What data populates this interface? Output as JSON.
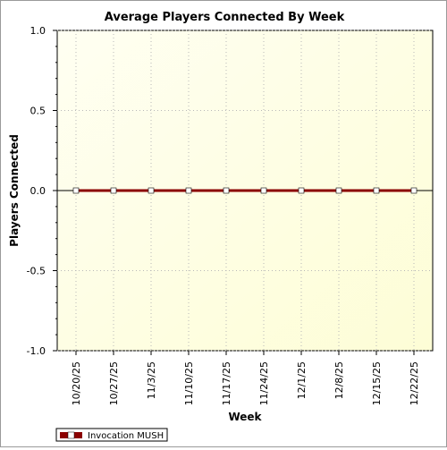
{
  "chart_data": {
    "type": "line",
    "title": "Average Players Connected By Week",
    "xlabel": "Week",
    "ylabel": "Players Connected",
    "categories": [
      "10/20/25",
      "10/27/25",
      "11/3/25",
      "11/10/25",
      "11/17/25",
      "11/24/25",
      "12/1/25",
      "12/8/25",
      "12/15/25",
      "12/22/25"
    ],
    "series": [
      {
        "name": "Invocation MUSH",
        "values": [
          0,
          0,
          0,
          0,
          0,
          0,
          0,
          0,
          0,
          0
        ],
        "color": "#8b0000"
      }
    ],
    "ylim": [
      -1.0,
      1.0
    ],
    "yticks": [
      "1.0",
      "0.5",
      "0.0",
      "-0.5",
      "-1.0"
    ],
    "grid": true,
    "legend": "bottom-left",
    "plot_background": "#fffff0",
    "marker_fill": "#ffffff"
  }
}
